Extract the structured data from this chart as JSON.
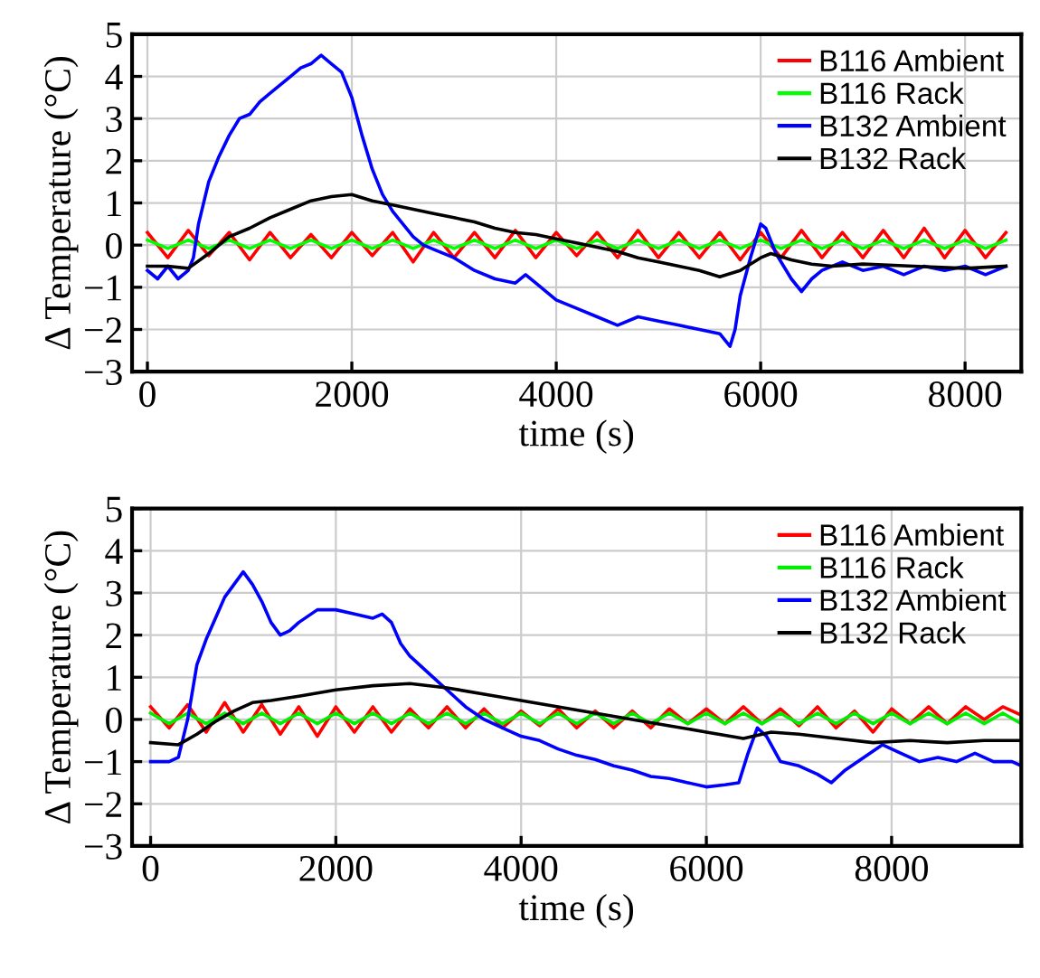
{
  "chart_data": [
    {
      "type": "line",
      "xlabel": "time (s)",
      "ylabel": "Δ Temperature (°C)",
      "xlim": [
        -150,
        8550
      ],
      "ylim": [
        -3,
        5
      ],
      "xticks": [
        0,
        2000,
        4000,
        6000,
        8000
      ],
      "yticks": [
        -3,
        -2,
        -1,
        0,
        1,
        2,
        3,
        4,
        5
      ],
      "grid": true,
      "legend": "top right",
      "series": [
        {
          "name": "B116 Ambient",
          "color": "#ff0000",
          "x": [
            0,
            200,
            400,
            600,
            800,
            1000,
            1200,
            1400,
            1600,
            1800,
            2000,
            2200,
            2400,
            2600,
            2800,
            3000,
            3200,
            3400,
            3600,
            3800,
            4000,
            4200,
            4400,
            4600,
            4800,
            5000,
            5200,
            5400,
            5600,
            5800,
            6000,
            6200,
            6400,
            6600,
            6800,
            7000,
            7200,
            7400,
            7600,
            7800,
            8000,
            8200,
            8400
          ],
          "values": [
            0.3,
            -0.3,
            0.35,
            -0.25,
            0.3,
            -0.35,
            0.3,
            -0.3,
            0.25,
            -0.3,
            0.3,
            -0.25,
            0.3,
            -0.4,
            0.3,
            -0.3,
            0.3,
            -0.3,
            0.35,
            -0.3,
            0.3,
            -0.25,
            0.3,
            -0.3,
            0.35,
            -0.3,
            0.3,
            -0.3,
            0.3,
            -0.35,
            0.3,
            -0.3,
            0.35,
            -0.3,
            0.3,
            -0.3,
            0.35,
            -0.3,
            0.4,
            -0.3,
            0.35,
            -0.3,
            0.3
          ]
        },
        {
          "name": "B116 Rack",
          "color": "#00ff00",
          "x": [
            0,
            200,
            400,
            600,
            800,
            1000,
            1200,
            1400,
            1600,
            1800,
            2000,
            2200,
            2400,
            2600,
            2800,
            3000,
            3200,
            3400,
            3600,
            3800,
            4000,
            4200,
            4400,
            4600,
            4800,
            5000,
            5200,
            5400,
            5600,
            5800,
            6000,
            6200,
            6400,
            6600,
            6800,
            7000,
            7200,
            7400,
            7600,
            7800,
            8000,
            8200,
            8400
          ],
          "values": [
            0.12,
            -0.08,
            0.12,
            -0.08,
            0.12,
            -0.08,
            0.12,
            -0.08,
            0.12,
            -0.08,
            0.12,
            -0.08,
            0.12,
            -0.08,
            0.12,
            -0.08,
            0.12,
            -0.08,
            0.12,
            -0.08,
            0.12,
            -0.08,
            0.12,
            -0.08,
            0.12,
            -0.08,
            0.12,
            -0.08,
            0.12,
            -0.08,
            0.12,
            -0.08,
            0.12,
            -0.08,
            0.12,
            -0.08,
            0.12,
            -0.08,
            0.12,
            -0.08,
            0.12,
            -0.08,
            0.12
          ]
        },
        {
          "name": "B132 Ambient",
          "color": "#0000ff",
          "x": [
            0,
            100,
            200,
            300,
            400,
            450,
            500,
            600,
            700,
            800,
            900,
            1000,
            1100,
            1200,
            1300,
            1400,
            1500,
            1600,
            1700,
            1800,
            1900,
            2000,
            2100,
            2200,
            2300,
            2400,
            2500,
            2600,
            2700,
            2800,
            3000,
            3200,
            3400,
            3600,
            3700,
            3800,
            4000,
            4200,
            4400,
            4600,
            4800,
            5000,
            5200,
            5400,
            5600,
            5700,
            5750,
            5800,
            5900,
            6000,
            6050,
            6150,
            6300,
            6400,
            6500,
            6600,
            6800,
            7000,
            7200,
            7400,
            7600,
            7800,
            8000,
            8200,
            8400
          ],
          "values": [
            -0.6,
            -0.8,
            -0.5,
            -0.8,
            -0.6,
            -0.3,
            0.5,
            1.5,
            2.1,
            2.6,
            3.0,
            3.1,
            3.4,
            3.6,
            3.8,
            4.0,
            4.2,
            4.3,
            4.5,
            4.3,
            4.1,
            3.5,
            2.6,
            1.8,
            1.2,
            0.8,
            0.5,
            0.2,
            0,
            -0.1,
            -0.3,
            -0.6,
            -0.8,
            -0.9,
            -0.7,
            -0.9,
            -1.3,
            -1.5,
            -1.7,
            -1.9,
            -1.7,
            -1.8,
            -1.9,
            -2.0,
            -2.1,
            -2.4,
            -2.0,
            -1.2,
            -0.3,
            0.5,
            0.4,
            -0.2,
            -0.8,
            -1.1,
            -0.8,
            -0.6,
            -0.4,
            -0.6,
            -0.5,
            -0.7,
            -0.5,
            -0.6,
            -0.5,
            -0.7,
            -0.5
          ]
        },
        {
          "name": "B132 Rack",
          "color": "#000000",
          "x": [
            0,
            200,
            400,
            600,
            800,
            1000,
            1200,
            1400,
            1600,
            1800,
            2000,
            2200,
            2400,
            2600,
            2800,
            3000,
            3200,
            3400,
            3600,
            3800,
            4000,
            4200,
            4400,
            4600,
            4800,
            5000,
            5200,
            5400,
            5600,
            5800,
            6000,
            6100,
            6300,
            6500,
            6700,
            7000,
            7500,
            8000,
            8400
          ],
          "values": [
            -0.5,
            -0.5,
            -0.55,
            -0.2,
            0.2,
            0.4,
            0.65,
            0.85,
            1.05,
            1.15,
            1.2,
            1.05,
            0.95,
            0.85,
            0.75,
            0.65,
            0.55,
            0.4,
            0.3,
            0.25,
            0.15,
            0.05,
            -0.05,
            -0.15,
            -0.3,
            -0.4,
            -0.5,
            -0.6,
            -0.75,
            -0.6,
            -0.3,
            -0.2,
            -0.35,
            -0.45,
            -0.5,
            -0.45,
            -0.5,
            -0.55,
            -0.5
          ]
        }
      ]
    },
    {
      "type": "line",
      "xlabel": "time (s)",
      "ylabel": "Δ Temperature (°C)",
      "xlim": [
        -200,
        9400
      ],
      "ylim": [
        -3,
        5
      ],
      "xticks": [
        0,
        2000,
        4000,
        6000,
        8000
      ],
      "yticks": [
        -3,
        -2,
        -1,
        0,
        1,
        2,
        3,
        4,
        5
      ],
      "grid": true,
      "legend": "top right",
      "series": [
        {
          "name": "B116 Ambient",
          "color": "#ff0000",
          "x": [
            0,
            200,
            400,
            600,
            800,
            1000,
            1200,
            1400,
            1600,
            1800,
            2000,
            2200,
            2400,
            2600,
            2800,
            3000,
            3200,
            3400,
            3600,
            3800,
            4000,
            4200,
            4400,
            4600,
            4800,
            5000,
            5200,
            5400,
            5600,
            5800,
            6000,
            6200,
            6400,
            6600,
            6800,
            7000,
            7200,
            7400,
            7600,
            7800,
            8000,
            8200,
            8400,
            8600,
            8800,
            9000,
            9200,
            9400
          ],
          "values": [
            0.3,
            -0.2,
            0.35,
            -0.3,
            0.4,
            -0.3,
            0.35,
            -0.35,
            0.3,
            -0.4,
            0.3,
            -0.3,
            0.3,
            -0.3,
            0.25,
            -0.2,
            0.3,
            -0.2,
            0.25,
            -0.2,
            0.2,
            -0.15,
            0.25,
            -0.2,
            0.2,
            -0.2,
            0.2,
            -0.2,
            0.25,
            -0.1,
            0.25,
            -0.1,
            0.3,
            -0.1,
            0.25,
            -0.15,
            0.3,
            -0.2,
            0.2,
            -0.3,
            0.25,
            -0.1,
            0.3,
            -0.1,
            0.3,
            0,
            0.3,
            0.1
          ]
        },
        {
          "name": "B116 Rack",
          "color": "#00ee00",
          "x": [
            0,
            200,
            400,
            600,
            800,
            1000,
            1200,
            1400,
            1600,
            1800,
            2000,
            2200,
            2400,
            2600,
            2800,
            3000,
            3200,
            3400,
            3600,
            3800,
            4000,
            4200,
            4400,
            4600,
            4800,
            5000,
            5200,
            5400,
            5600,
            5800,
            6000,
            6200,
            6400,
            6600,
            6800,
            7000,
            7200,
            7400,
            7600,
            7800,
            8000,
            8200,
            8400,
            8600,
            8800,
            9000,
            9200,
            9400
          ],
          "values": [
            0.15,
            -0.1,
            0.15,
            -0.1,
            0.15,
            -0.1,
            0.15,
            -0.1,
            0.15,
            -0.1,
            0.15,
            -0.1,
            0.15,
            -0.1,
            0.15,
            -0.1,
            0.15,
            -0.1,
            0.15,
            -0.1,
            0.15,
            -0.1,
            0.15,
            -0.1,
            0.15,
            -0.1,
            0.15,
            -0.1,
            0.15,
            -0.1,
            0.15,
            -0.1,
            0.15,
            -0.1,
            0.15,
            -0.1,
            0.15,
            -0.1,
            0.15,
            -0.1,
            0.15,
            -0.1,
            0.15,
            -0.1,
            0.15,
            -0.1,
            0.15,
            -0.1
          ]
        },
        {
          "name": "B132 Ambient",
          "color": "#0000ff",
          "x": [
            0,
            200,
            300,
            400,
            500,
            600,
            700,
            800,
            900,
            1000,
            1100,
            1200,
            1300,
            1400,
            1500,
            1600,
            1800,
            2000,
            2200,
            2400,
            2500,
            2600,
            2700,
            2800,
            3000,
            3200,
            3400,
            3600,
            3800,
            4000,
            4200,
            4400,
            4600,
            4800,
            5000,
            5200,
            5400,
            5600,
            5800,
            6000,
            6200,
            6350,
            6450,
            6550,
            6650,
            6800,
            7000,
            7200,
            7350,
            7500,
            7700,
            7900,
            8100,
            8300,
            8500,
            8700,
            8900,
            9100,
            9300,
            9400
          ],
          "values": [
            -1.0,
            -1.0,
            -0.9,
            0,
            1.3,
            1.9,
            2.4,
            2.9,
            3.2,
            3.5,
            3.2,
            2.8,
            2.3,
            2.0,
            2.1,
            2.3,
            2.6,
            2.6,
            2.5,
            2.4,
            2.5,
            2.3,
            1.8,
            1.5,
            1.1,
            0.7,
            0.3,
            0,
            -0.2,
            -0.4,
            -0.5,
            -0.7,
            -0.85,
            -0.95,
            -1.1,
            -1.2,
            -1.35,
            -1.4,
            -1.5,
            -1.6,
            -1.55,
            -1.5,
            -0.8,
            -0.2,
            -0.4,
            -1.0,
            -1.1,
            -1.3,
            -1.5,
            -1.2,
            -0.9,
            -0.6,
            -0.8,
            -1.0,
            -0.9,
            -1.0,
            -0.8,
            -1.0,
            -1.0,
            -1.1
          ]
        },
        {
          "name": "B132 Rack",
          "color": "#000000",
          "x": [
            0,
            300,
            500,
            700,
            900,
            1100,
            1300,
            1600,
            2000,
            2400,
            2800,
            3200,
            3600,
            4000,
            4400,
            4800,
            5200,
            5600,
            6000,
            6400,
            6700,
            7000,
            7400,
            7800,
            8200,
            8600,
            9000,
            9400
          ],
          "values": [
            -0.55,
            -0.6,
            -0.35,
            -0.05,
            0.2,
            0.4,
            0.45,
            0.55,
            0.7,
            0.8,
            0.85,
            0.75,
            0.6,
            0.45,
            0.3,
            0.15,
            0,
            -0.15,
            -0.3,
            -0.45,
            -0.3,
            -0.35,
            -0.45,
            -0.55,
            -0.5,
            -0.55,
            -0.5,
            -0.5
          ]
        }
      ]
    }
  ]
}
